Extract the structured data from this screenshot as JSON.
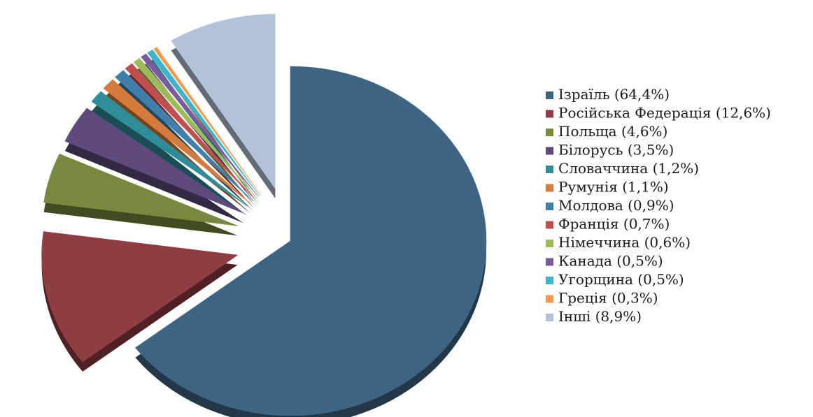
{
  "chart_data": {
    "type": "pie",
    "style": "3d-exploded",
    "legend_position": "right",
    "slices": [
      {
        "label": "Ізраїль (64,4%)",
        "value": 64.4,
        "color": "#3d6483"
      },
      {
        "label": "Російська Федерація (12,6%)",
        "value": 12.6,
        "color": "#8f3c42"
      },
      {
        "label": "Польща (4,6%)",
        "value": 4.6,
        "color": "#76893e"
      },
      {
        "label": "Білорусь (3,5%)",
        "value": 3.5,
        "color": "#5e4a7c"
      },
      {
        "label": "Словаччина (1,2%)",
        "value": 1.2,
        "color": "#2f8d9a"
      },
      {
        "label": "Румунія (1,1%)",
        "value": 1.1,
        "color": "#d47a3a"
      },
      {
        "label": "Молдова (0,9%)",
        "value": 0.9,
        "color": "#3f7faa"
      },
      {
        "label": "Франція (0,7%)",
        "value": 0.7,
        "color": "#c24d4d"
      },
      {
        "label": "Німеччина (0,6%)",
        "value": 0.6,
        "color": "#9bbb59"
      },
      {
        "label": "Канада (0,5%)",
        "value": 0.5,
        "color": "#7a5c9e"
      },
      {
        "label": "Угорщина (0,5%)",
        "value": 0.5,
        "color": "#3fb3c8"
      },
      {
        "label": "Греція (0,3%)",
        "value": 0.3,
        "color": "#f49a50"
      },
      {
        "label": "Інші (8,9%)",
        "value": 8.9,
        "color": "#b2c2d8"
      }
    ]
  }
}
